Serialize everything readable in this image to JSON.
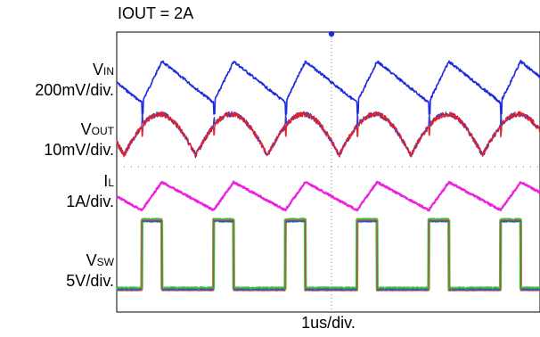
{
  "title": "IOUT = 2A",
  "x_axis_label": "1us/div.",
  "channels": [
    {
      "id": "vin",
      "name_main": "V",
      "name_sub": "IN",
      "scale": "200mV/div.",
      "color": "#1f2be0"
    },
    {
      "id": "vout",
      "name_main": "V",
      "name_sub": "OUT",
      "scale": "10mV/div.",
      "color": "#e0202a"
    },
    {
      "id": "il",
      "name_main": "I",
      "name_sub": "L",
      "scale": "1A/div.",
      "color": "#ee22dd"
    },
    {
      "id": "vsw",
      "name_main": "V",
      "name_sub": "SW",
      "scale": "5V/div.",
      "color": "#e53a3a"
    }
  ],
  "chart_data": {
    "type": "line",
    "title": "IOUT = 2A",
    "xlabel": "1us/div.",
    "x_unit": "us",
    "xlim": [
      0,
      5.9
    ],
    "switching_period_us": 1.0,
    "switch_on_times_us": [
      0.35,
      1.35,
      2.35,
      3.35,
      4.35,
      5.35
    ],
    "switch_on_duration_us": 0.28,
    "series": [
      {
        "name": "VIN",
        "scale": "200mV/div.",
        "waveform": "sawtooth",
        "peak_to_peak_div": 1.1
      },
      {
        "name": "VOUT",
        "scale": "10mV/div.",
        "waveform": "ripple",
        "peak_to_peak_div": 1.2
      },
      {
        "name": "IL",
        "scale": "1A/div.",
        "waveform": "triangle",
        "peak_to_peak_div": 1.0
      },
      {
        "name": "VSW",
        "scale": "5V/div.",
        "waveform": "pulse",
        "high_div": 2.5,
        "low_div": -0.8
      }
    ],
    "grid": false,
    "legend": "left"
  }
}
